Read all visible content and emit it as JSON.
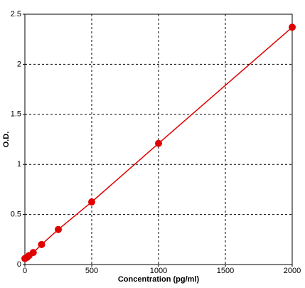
{
  "chart_data": {
    "type": "line",
    "xlabel": "Concentration (pg/ml)",
    "ylabel": "O.D.",
    "x": [
      0,
      15.6,
      31.25,
      62.5,
      125,
      250,
      500,
      1000,
      2000
    ],
    "series": [
      {
        "color": "#e00000",
        "values": [
          0.06,
          0.07,
          0.09,
          0.12,
          0.2,
          0.35,
          0.625,
          1.21,
          2.37
        ]
      }
    ],
    "xlim": [
      0,
      2000
    ],
    "xticks": [
      0,
      500,
      1000,
      1500,
      2000
    ],
    "ylim": [
      0,
      2.5
    ],
    "yticks": [
      0,
      0.5,
      1,
      1.5,
      2,
      2.5
    ],
    "grid": true
  }
}
